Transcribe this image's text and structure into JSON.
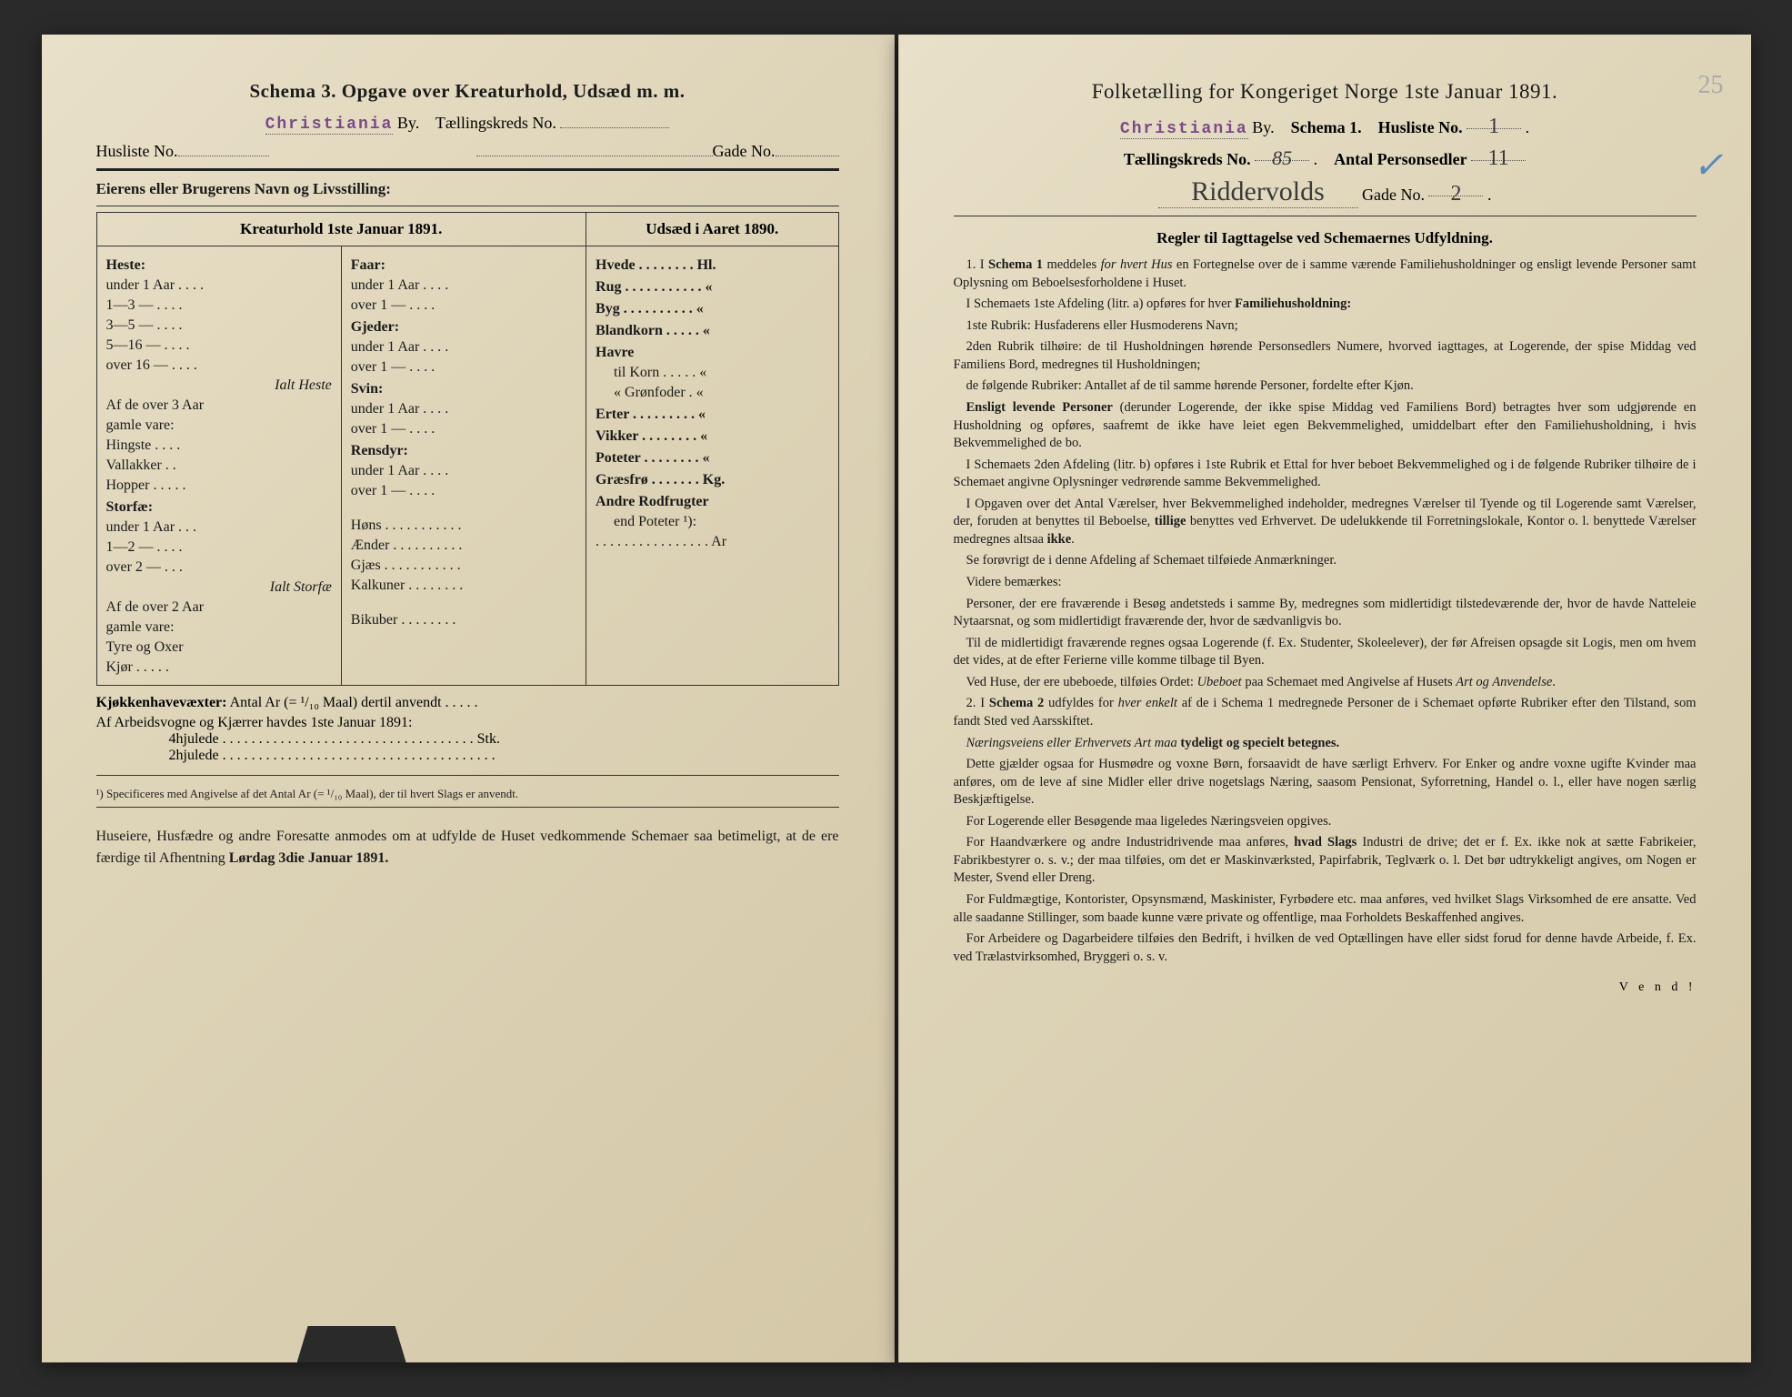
{
  "left": {
    "schema_title": "Schema 3.   Opgave over Kreaturhold, Udsæd m. m.",
    "city_stamp": "Christiania",
    "by_label": "By.",
    "tkreds_label": "Tællingskreds No.",
    "husliste_label": "Husliste No.",
    "gade_label": "Gade No.",
    "eier_label": "Eierens eller Brugerens Navn og Livsstilling:",
    "table": {
      "head_left": "Kreaturhold 1ste Januar 1891.",
      "head_right": "Udsæd i Aaret 1890.",
      "colA": {
        "heste": "Heste:",
        "h_under1": "under 1 Aar . . . .",
        "h_1_3": "1—3   —   . . . .",
        "h_3_5": "3—5   —   . . . .",
        "h_5_16": "5—16   —   . . . .",
        "h_over16": "over 16 — . . . .",
        "ialt_heste": "Ialt Heste",
        "af3": "Af de over 3 Aar",
        "gamle": "gamle vare:",
        "hingste": "Hingste . . . .",
        "vallakker": "Vallakker . .",
        "hopper": "Hopper . . . . .",
        "storfae": "Storfæ:",
        "s_under1": "under 1 Aar . . .",
        "s_1_2": "1—2   —   . . . .",
        "s_over2": "over 2   —   . . .",
        "ialt_storfae": "Ialt Storfæ",
        "af2": "Af de over 2 Aar",
        "gamle2": "gamle vare:",
        "tyre": "Tyre og Oxer",
        "kjor": "Kjør . . . . ."
      },
      "colB": {
        "faar": "Faar:",
        "f_under1": "under 1 Aar . . . .",
        "f_over1": "over 1   —   . . . .",
        "gjeder": "Gjeder:",
        "g_under1": "under 1 Aar . . . .",
        "g_over1": "over 1   —   . . . .",
        "svin": "Svin:",
        "sv_under1": "under 1 Aar . . . .",
        "sv_over1": "over 1   —   . . . .",
        "rensdyr": "Rensdyr:",
        "r_under1": "under 1 Aar . . . .",
        "r_over1": "over 1   —   . . . .",
        "hons": "Høns . . . . . . . . . . .",
        "aender": "Ænder . . . . . . . . . .",
        "gjaes": "Gjæs . . . . . . . . . . .",
        "kalkuner": "Kalkuner . . . . . . . .",
        "bikuber": "Bikuber . . . . . . . ."
      },
      "colC": {
        "hvede": "Hvede . . . . . . . . Hl.",
        "rug": "Rug . . . . . . . . . . .  «",
        "byg": "Byg . . . . . . . . . .  «",
        "blandkorn": "Blandkorn . . . . .  «",
        "havre": "Havre",
        "tilkorn": "til Korn . . . . .  «",
        "gronfoder": "«  Grønfoder .  «",
        "erter": "Erter . . . . . . . . .  «",
        "vikker": "Vikker . . . . . . . .  «",
        "poteter": "Poteter . . . . . . . .  «",
        "graesfro": "Græsfrø . . . . . . . Kg.",
        "andre": "Andre Rodfrugter",
        "endpoteter": "end Poteter ¹):",
        "ar": ". . . . . . . . . . . . . . . . Ar"
      }
    },
    "kjokken": "Kjøkkenhavevæxter:  Antal Ar (= ¹/₁₀ Maal) dertil anvendt . . . . .",
    "arbeids": "Af Arbeidsvogne og Kjærrer havdes 1ste Januar 1891:",
    "hjul4": "4hjulede . . . . . . . . . . . . . . . . . . . . . . . . . . . . . . . . . . . Stk.",
    "hjul2": "2hjulede . . . . . . . . . . . . . . . . . . . . . . . . . . . . . . . . . . . . . .",
    "footnote": "¹) Specificeres med Angivelse af det Antal Ar (= ¹/₁₀ Maal), der til hvert Slags er anvendt.",
    "closing": "Huseiere, Husfædre og andre Foresatte anmodes om at udfylde de Huset vedkommende Schemaer saa betimeligt, at de ere færdige til Afhentning Lørdag 3die Januar 1891."
  },
  "right": {
    "title": "Folketælling for Kongeriget Norge 1ste Januar 1891.",
    "city_stamp": "Christiania",
    "by_label": "By.",
    "schema1": "Schema 1.",
    "husliste_label": "Husliste No.",
    "husliste_val": "1",
    "tkreds_label": "Tællingskreds No.",
    "tkreds_val": "85",
    "antal_label": "Antal Personsedler",
    "antal_val": "11",
    "street": "Riddervolds",
    "gade_label": "Gade No.",
    "gade_val": "2",
    "pencil": "25",
    "blue": "✓",
    "rules_title": "Regler til Iagttagelse ved Schemaernes Udfyldning.",
    "paras": [
      "1. I <b>Schema 1</b> meddeles <em>for hvert Hus</em> en Fortegnelse over de i samme værende Familiehusholdninger og ensligt levende Personer samt Oplysning om Beboelsesforholdene i Huset.",
      "I Schemaets 1ste Afdeling (litr. a) opføres for hver <b>Familiehusholdning:</b>",
      "1ste Rubrik: Husfaderens eller Husmoderens Navn;",
      "2den Rubrik tilhøire: de til Husholdningen hørende Personsedlers Numere, hvorved iagttages, at Logerende, der spise Middag ved Familiens Bord, medregnes til Husholdningen;",
      "de følgende Rubriker: Antallet af de til samme hørende Personer, fordelte efter Kjøn.",
      "<b>Ensligt levende Personer</b> (derunder Logerende, der ikke spise Middag ved Familiens Bord) betragtes hver som udgjørende en Husholdning og opføres, saafremt de ikke have leiet egen Bekvemmelighed, umiddelbart efter den Familiehusholdning, i hvis Bekvemmelighed de bo.",
      "I Schemaets 2den Afdeling (litr. b) opføres i 1ste Rubrik et Ettal for hver beboet Bekvemmelighed og i de følgende Rubriker tilhøire de i Schemaet angivne Oplysninger vedrørende samme Bekvemmelighed.",
      "I Opgaven over det Antal Værelser, hver Bekvemmelighed indeholder, medregnes Værelser til Tyende og til Logerende samt Værelser, der, foruden at benyttes til Beboelse, <b>tillige</b> benyttes ved Erhvervet.  De udelukkende til Forretningslokale, Kontor o. l. benyttede Værelser medregnes altsaa <b>ikke</b>.",
      "Se forøvrigt de i denne Afdeling af Schemaet tilføiede Anmærkninger.",
      "Videre bemærkes:",
      "Personer, der ere fraværende i Besøg andetsteds i samme By, medregnes som midlertidigt tilstedeværende der, hvor de havde Natteleie Nytaarsnat, og som midlertidigt fraværende der, hvor de sædvanligvis bo.",
      "Til de midlertidigt fraværende regnes ogsaa Logerende (f. Ex. Studenter, Skoleelever), der før Afreisen opsagde sit Logis, men om hvem det vides, at de efter Ferierne ville komme tilbage til Byen.",
      "Ved Huse, der ere ubeboede, tilføies Ordet: <em>Ubeboet</em> paa Schemaet med Angivelse af Husets <em>Art og Anvendelse</em>.",
      "2. I <b>Schema 2</b> udfyldes for <em>hver enkelt</em> af de i Schema 1 medregnede Personer de i Schemaet opførte Rubriker efter den Tilstand, som fandt Sted ved Aarsskiftet.",
      "<em>Næringsveiens eller Erhvervets Art maa</em> <b>tydeligt og specielt betegnes.</b>",
      "Dette gjælder ogsaa for Husmødre og voxne Børn, forsaavidt de have særligt Erhverv.  For Enker og andre voxne ugifte Kvinder maa anføres, om de leve af sine Midler eller drive nogetslags Næring, saasom Pensionat, Syforretning, Handel o. l., eller have nogen særlig Beskjæftigelse.",
      "For Logerende eller Besøgende maa ligeledes Næringsveien opgives.",
      "For Haandværkere og andre Industridrivende maa anføres, <b>hvad Slags</b> Industri de drive; det er f. Ex. ikke nok at sætte Fabrikeier, Fabrikbestyrer o. s. v.; der maa tilføies, om det er Maskinværksted, Papirfabrik, Teglværk o. l.  Det bør udtrykkeligt angives, om Nogen er Mester, Svend eller Dreng.",
      "For Fuldmægtige, Kontorister, Opsynsmænd, Maskinister, Fyrbødere etc. maa anføres, ved hvilket Slags Virksomhed de ere ansatte.  Ved alle saadanne Stillinger, som baade kunne være private og offentlige, maa Forholdets Beskaffenhed angives.",
      "For Arbeidere og Dagarbeidere tilføies den Bedrift, i hvilken de ved Optællingen have eller sidst forud for denne havde Arbeide, f. Ex. ved Trælastvirksomhed, Bryggeri o. s. v."
    ],
    "vend": "V e n d !"
  }
}
